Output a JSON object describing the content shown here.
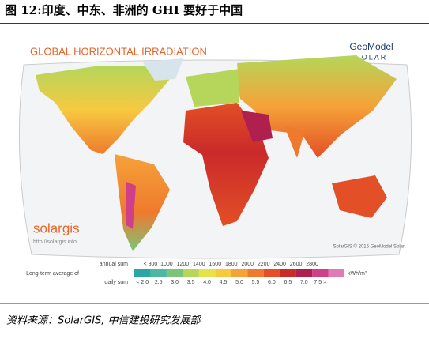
{
  "header": {
    "title": "图 12:印度、中东、非洲的 GHI 要好于中国"
  },
  "map": {
    "title": "GLOBAL HORIZONTAL IRRADIATION",
    "brand": "GeoModel",
    "brand_sub": "SOLAR",
    "logo": "solargis",
    "logo_url": "http://solargis.info",
    "copyright": "SolarGIS © 2015 GeoModel Solar"
  },
  "legend": {
    "label": "Long-term average of",
    "annual_label": "annual sum",
    "daily_label": "daily sum",
    "unit": "kWh/m²",
    "annual": [
      "< 800",
      "1000",
      "1200",
      "1400",
      "1600",
      "1800",
      "2000",
      "2200",
      "2400",
      "2600",
      "2800"
    ],
    "daily": [
      "< 2.0",
      "2.5",
      "3.0",
      "3.5",
      "4.0",
      "4.5",
      "5.0",
      "5.5",
      "6.0",
      "6.5",
      "7.0",
      "7.5 >"
    ],
    "colors": [
      "#2aa5a8",
      "#4db8a0",
      "#7cc47a",
      "#b5d65a",
      "#e6e24a",
      "#f7c940",
      "#f5a238",
      "#ef7a2e",
      "#e34f26",
      "#c92a2a",
      "#b0204e",
      "#d0408a",
      "#e07ab5"
    ]
  },
  "source": "资料来源：SolarGIS, 中信建投研究发展部"
}
